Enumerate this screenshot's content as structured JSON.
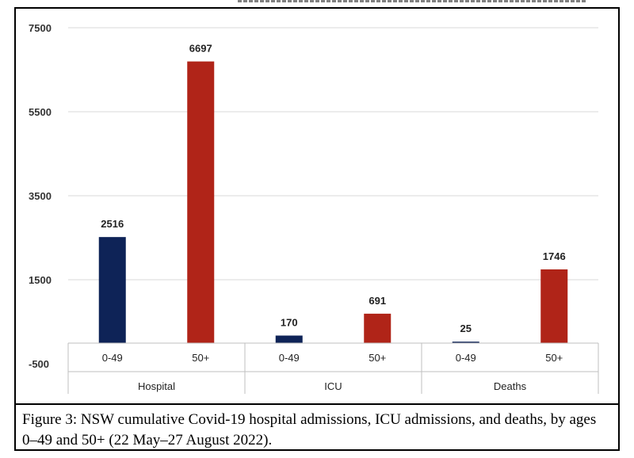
{
  "caption": "Figure 3: NSW cumulative Covid-19 hospital admissions, ICU admissions, and deaths, by ages 0–49 and 50+ (22 May–27 August 2022).",
  "chart_data": {
    "type": "bar",
    "groups": [
      {
        "name": "Hospital",
        "categories": [
          "0-49",
          "50+"
        ],
        "values": [
          2516,
          6697
        ]
      },
      {
        "name": "ICU",
        "categories": [
          "0-49",
          "50+"
        ],
        "values": [
          170,
          691
        ]
      },
      {
        "name": "Deaths",
        "categories": [
          "0-49",
          "50+"
        ],
        "values": [
          25,
          1746
        ]
      }
    ],
    "y_ticks": [
      "7500",
      "5500",
      "3500",
      "1500",
      "-500"
    ],
    "ylim": [
      -500,
      7500
    ],
    "grid": true,
    "data_labels": true,
    "colors": {
      "0-49": "#0e2357",
      "50+": "#b02418"
    }
  }
}
